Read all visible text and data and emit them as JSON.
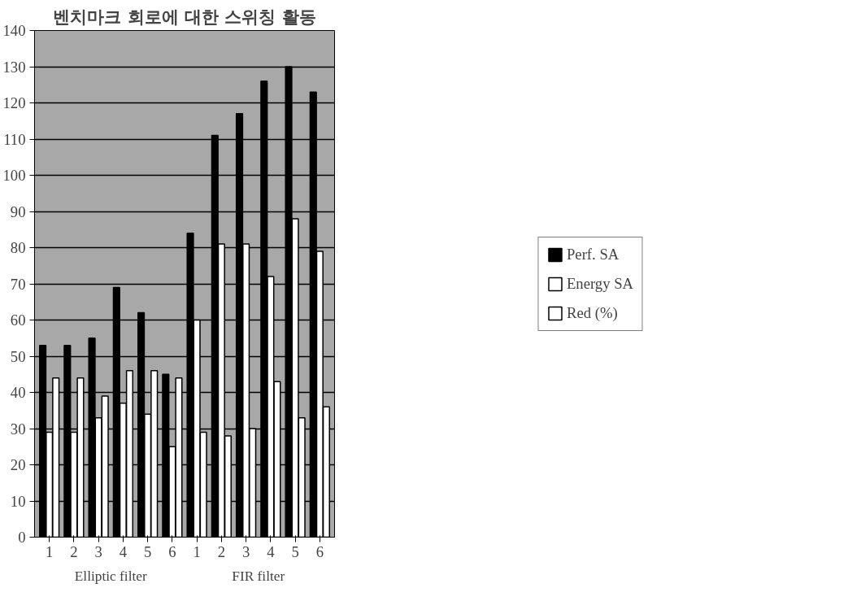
{
  "chart_data": {
    "type": "bar",
    "title": "벤치마크 회로에 대한 스위칭 활동",
    "categories": [
      "1",
      "2",
      "3",
      "4",
      "5",
      "6",
      "1",
      "2",
      "3",
      "4",
      "5",
      "6"
    ],
    "annotations": [
      "Elliptic filter",
      "FIR filter"
    ],
    "series": [
      {
        "name": "Perf. SA",
        "color": "#000000",
        "values": [
          53,
          53,
          55,
          69,
          62,
          45,
          84,
          111,
          117,
          126,
          130,
          123
        ]
      },
      {
        "name": "Energy SA",
        "color": "#ffffff",
        "values": [
          29,
          29,
          33,
          37,
          34,
          25,
          60,
          81,
          81,
          72,
          88,
          79
        ]
      },
      {
        "name": "Red (%)",
        "color": "#ffffff",
        "values": [
          44,
          44,
          39,
          46,
          46,
          44,
          29,
          28,
          30,
          43,
          33,
          36
        ]
      }
    ],
    "ylim": [
      0,
      140
    ],
    "yticks": [
      0,
      10,
      20,
      30,
      40,
      50,
      60,
      70,
      80,
      90,
      100,
      110,
      120,
      130,
      140
    ],
    "grid": "y",
    "legend": "right"
  }
}
